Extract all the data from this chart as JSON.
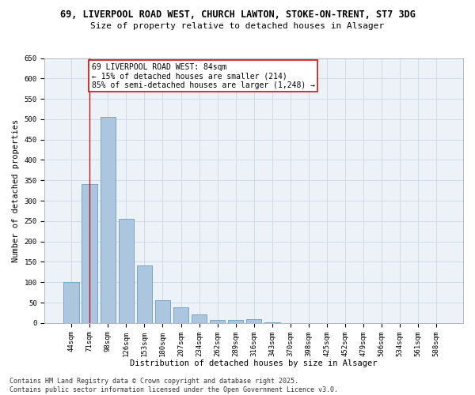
{
  "title_line1": "69, LIVERPOOL ROAD WEST, CHURCH LAWTON, STOKE-ON-TRENT, ST7 3DG",
  "title_line2": "Size of property relative to detached houses in Alsager",
  "xlabel": "Distribution of detached houses by size in Alsager",
  "ylabel": "Number of detached properties",
  "bar_labels": [
    "44sqm",
    "71sqm",
    "98sqm",
    "126sqm",
    "153sqm",
    "180sqm",
    "207sqm",
    "234sqm",
    "262sqm",
    "289sqm",
    "316sqm",
    "343sqm",
    "370sqm",
    "398sqm",
    "425sqm",
    "452sqm",
    "479sqm",
    "506sqm",
    "534sqm",
    "561sqm",
    "588sqm"
  ],
  "bar_values": [
    100,
    340,
    505,
    255,
    142,
    55,
    38,
    22,
    7,
    8,
    9,
    2,
    0,
    0,
    0,
    0,
    0,
    0,
    0,
    0,
    0
  ],
  "bar_color": "#adc6e0",
  "bar_edge_color": "#6a9ec0",
  "grid_color": "#d0daea",
  "bg_color": "#edf2f9",
  "vline_x": 1,
  "vline_color": "#cc1111",
  "annotation_text": "69 LIVERPOOL ROAD WEST: 84sqm\n← 15% of detached houses are smaller (214)\n85% of semi-detached houses are larger (1,248) →",
  "annotation_box_color": "#cc1111",
  "ylim": [
    0,
    650
  ],
  "yticks": [
    0,
    50,
    100,
    150,
    200,
    250,
    300,
    350,
    400,
    450,
    500,
    550,
    600,
    650
  ],
  "footer_text": "Contains HM Land Registry data © Crown copyright and database right 2025.\nContains public sector information licensed under the Open Government Licence v3.0.",
  "title_fontsize": 8.5,
  "subtitle_fontsize": 8,
  "axis_label_fontsize": 7.5,
  "tick_fontsize": 6.5,
  "annotation_fontsize": 7,
  "footer_fontsize": 6
}
